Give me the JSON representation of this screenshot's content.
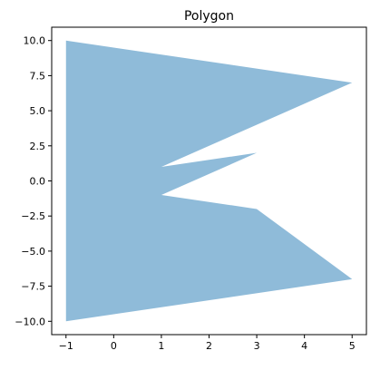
{
  "chart_data": {
    "type": "area",
    "title": "Polygon",
    "xlabel": "",
    "ylabel": "",
    "xlim": [
      -1.3,
      5.3
    ],
    "ylim": [
      -10.95,
      10.95
    ],
    "x_ticks": [
      -1,
      0,
      1,
      2,
      3,
      4,
      5
    ],
    "x_tick_labels": [
      "−1",
      "0",
      "1",
      "2",
      "3",
      "4",
      "5"
    ],
    "y_ticks": [
      10,
      7.5,
      5,
      2.5,
      0,
      -2.5,
      -5,
      -7.5,
      -10
    ],
    "y_tick_labels": [
      "10.0",
      "7.5",
      "5.0",
      "2.5",
      "0.0",
      "−2.5",
      "−5.0",
      "−7.5",
      "−10.0"
    ],
    "grid": false,
    "fill_color": "#1f77b4",
    "fill_opacity": 0.5,
    "polygon": [
      [
        -1,
        10
      ],
      [
        5,
        7
      ],
      [
        1,
        1
      ],
      [
        3,
        2
      ],
      [
        1,
        -1
      ],
      [
        3,
        -2
      ],
      [
        5,
        -7
      ],
      [
        -1,
        -10
      ]
    ]
  }
}
